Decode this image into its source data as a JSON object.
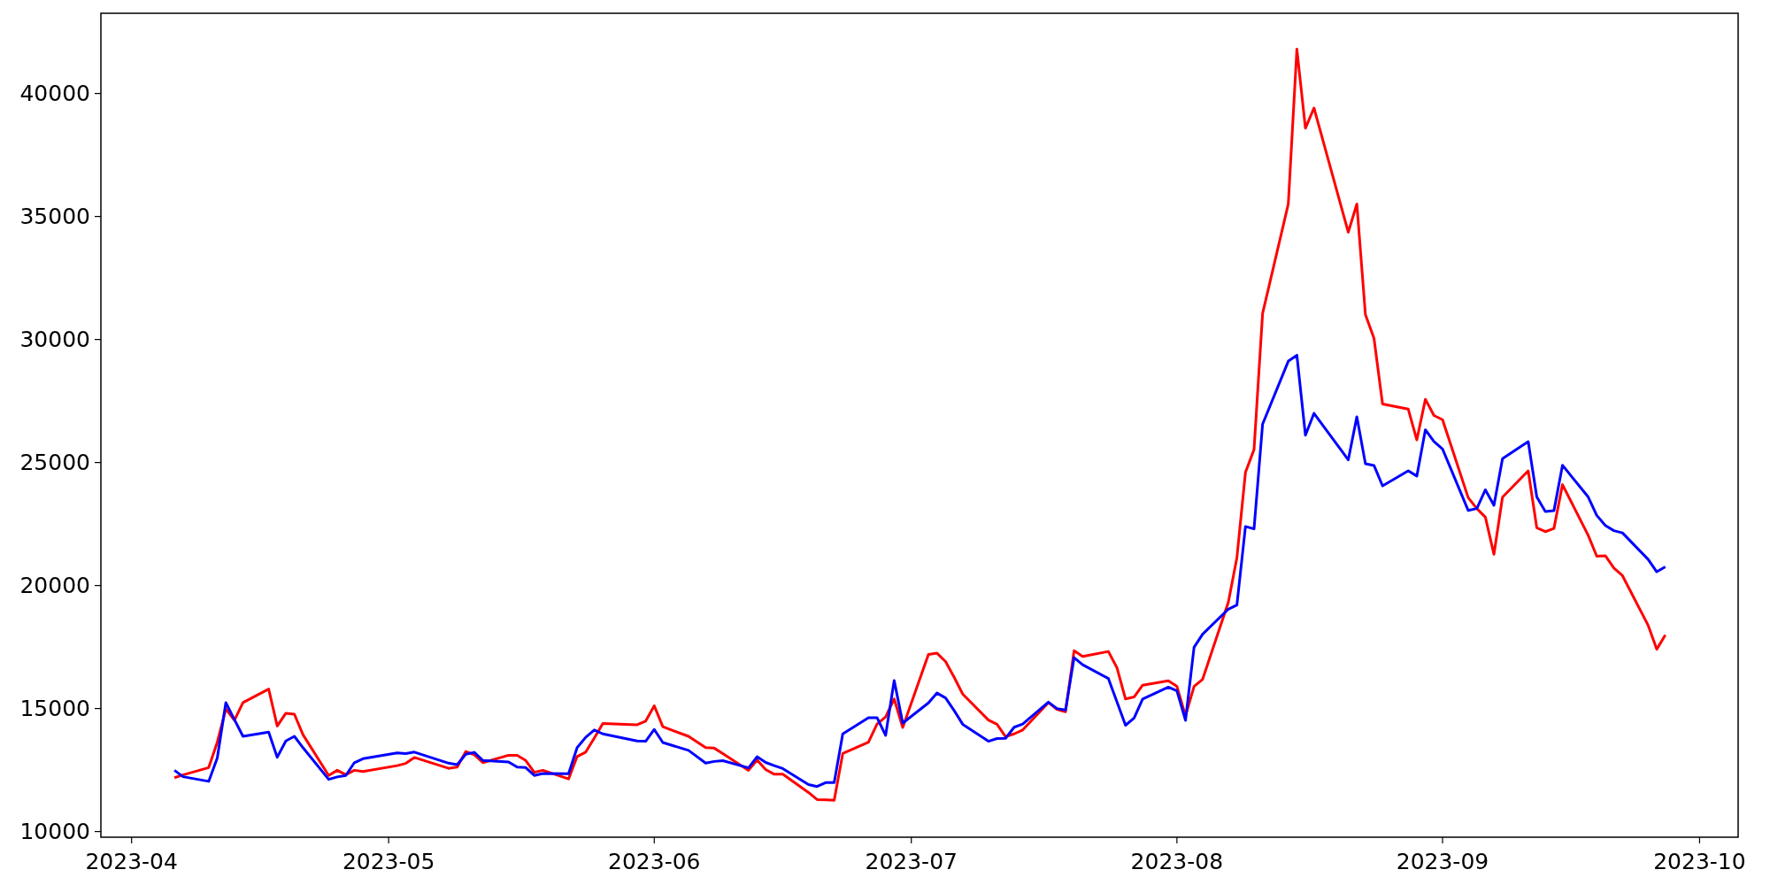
{
  "chart_data": {
    "type": "line",
    "x": [
      "2023-04-06",
      "2023-04-07",
      "2023-04-10",
      "2023-04-11",
      "2023-04-12",
      "2023-04-13",
      "2023-04-14",
      "2023-04-17",
      "2023-04-18",
      "2023-04-19",
      "2023-04-20",
      "2023-04-21",
      "2023-04-24",
      "2023-04-25",
      "2023-04-26",
      "2023-04-27",
      "2023-04-28",
      "2023-05-02",
      "2023-05-03",
      "2023-05-04",
      "2023-05-08",
      "2023-05-09",
      "2023-05-10",
      "2023-05-11",
      "2023-05-12",
      "2023-05-15",
      "2023-05-16",
      "2023-05-17",
      "2023-05-18",
      "2023-05-19",
      "2023-05-22",
      "2023-05-23",
      "2023-05-24",
      "2023-05-25",
      "2023-05-26",
      "2023-05-30",
      "2023-05-31",
      "2023-06-01",
      "2023-06-02",
      "2023-06-05",
      "2023-06-07",
      "2023-06-08",
      "2023-06-09",
      "2023-06-12",
      "2023-06-13",
      "2023-06-14",
      "2023-06-15",
      "2023-06-16",
      "2023-06-19",
      "2023-06-20",
      "2023-06-21",
      "2023-06-22",
      "2023-06-23",
      "2023-06-26",
      "2023-06-27",
      "2023-06-28",
      "2023-06-29",
      "2023-06-30",
      "2023-07-03",
      "2023-07-04",
      "2023-07-05",
      "2023-07-06",
      "2023-07-07",
      "2023-07-10",
      "2023-07-11",
      "2023-07-12",
      "2023-07-13",
      "2023-07-14",
      "2023-07-17",
      "2023-07-18",
      "2023-07-19",
      "2023-07-20",
      "2023-07-21",
      "2023-07-24",
      "2023-07-25",
      "2023-07-26",
      "2023-07-27",
      "2023-07-28",
      "2023-07-31",
      "2023-08-01",
      "2023-08-02",
      "2023-08-03",
      "2023-08-04",
      "2023-08-07",
      "2023-08-08",
      "2023-08-09",
      "2023-08-10",
      "2023-08-11",
      "2023-08-14",
      "2023-08-15",
      "2023-08-16",
      "2023-08-17",
      "2023-08-21",
      "2023-08-22",
      "2023-08-23",
      "2023-08-24",
      "2023-08-25",
      "2023-08-28",
      "2023-08-29",
      "2023-08-30",
      "2023-08-31",
      "2023-09-01",
      "2023-09-04",
      "2023-09-05",
      "2023-09-06",
      "2023-09-07",
      "2023-09-08",
      "2023-09-11",
      "2023-09-12",
      "2023-09-13",
      "2023-09-14",
      "2023-09-15",
      "2023-09-18",
      "2023-09-19",
      "2023-09-20",
      "2023-09-21",
      "2023-09-22",
      "2023-09-25",
      "2023-09-26",
      "2023-09-27"
    ],
    "series": [
      {
        "color": "#ff0000",
        "values": [
          12190,
          12300,
          12600,
          13630,
          14980,
          14520,
          15240,
          15790,
          14290,
          14810,
          14770,
          13940,
          12280,
          12490,
          12310,
          12490,
          12440,
          12680,
          12770,
          13010,
          12570,
          12620,
          13250,
          13120,
          12800,
          13100,
          13100,
          12890,
          12410,
          12490,
          12140,
          13050,
          13230,
          13800,
          14390,
          14340,
          14490,
          15110,
          14260,
          13870,
          13410,
          13390,
          13170,
          12490,
          12910,
          12520,
          12330,
          12330,
          11590,
          11300,
          11290,
          11270,
          13170,
          13630,
          14370,
          14660,
          15390,
          14230,
          17200,
          17250,
          16910,
          16270,
          15590,
          14530,
          14360,
          13860,
          13970,
          14130,
          15240,
          14970,
          14870,
          17350,
          17120,
          17320,
          16660,
          15390,
          15470,
          15950,
          16130,
          15900,
          14700,
          15900,
          16190,
          19320,
          21130,
          24600,
          25530,
          31060,
          35510,
          41800,
          38590,
          39410,
          34360,
          35510,
          31010,
          30050,
          27380,
          27170,
          25920,
          27570,
          26910,
          26740,
          23570,
          23130,
          22780,
          21270,
          23590,
          24660,
          22350,
          22190,
          22320,
          24100,
          22040,
          21190,
          21210,
          20710,
          20400,
          18380,
          17410,
          17990
        ]
      },
      {
        "color": "#0000ff",
        "values": [
          12490,
          12230,
          12040,
          12990,
          15240,
          14550,
          13870,
          14040,
          13020,
          13680,
          13870,
          13410,
          12120,
          12220,
          12280,
          12800,
          12960,
          13200,
          13170,
          13230,
          12780,
          12720,
          13140,
          13220,
          12890,
          12830,
          12620,
          12600,
          12280,
          12360,
          12350,
          13410,
          13830,
          14130,
          13970,
          13680,
          13670,
          14150,
          13620,
          13300,
          12780,
          12850,
          12880,
          12590,
          13040,
          12810,
          12680,
          12560,
          11910,
          11830,
          11990,
          11990,
          13970,
          14630,
          14630,
          13910,
          16140,
          14410,
          15230,
          15630,
          15430,
          14920,
          14360,
          13670,
          13780,
          13790,
          14240,
          14370,
          15260,
          15000,
          14940,
          17070,
          16780,
          16220,
          15270,
          14320,
          14610,
          15390,
          15870,
          15720,
          14520,
          17490,
          18020,
          19040,
          19210,
          22400,
          22300,
          26560,
          29120,
          29360,
          26110,
          27000,
          25110,
          26860,
          24950,
          24880,
          24050,
          24660,
          24450,
          26330,
          25850,
          25550,
          23050,
          23130,
          23890,
          23260,
          25160,
          25850,
          23600,
          23010,
          23040,
          24890,
          23600,
          22850,
          22440,
          22230,
          22140,
          21060,
          20560,
          20760
        ]
      }
    ],
    "xlim": [
      "2023-03-28T10:00",
      "2023-10-05T12:00"
    ],
    "xticks": [
      {
        "value": "2023-04-01",
        "label": "2023-04"
      },
      {
        "value": "2023-05-01",
        "label": "2023-05"
      },
      {
        "value": "2023-06-01",
        "label": "2023-06"
      },
      {
        "value": "2023-07-01",
        "label": "2023-07"
      },
      {
        "value": "2023-08-01",
        "label": "2023-08"
      },
      {
        "value": "2023-09-01",
        "label": "2023-09"
      },
      {
        "value": "2023-10-01",
        "label": "2023-10"
      }
    ],
    "ylim": [
      9770,
      43260
    ],
    "yticks": [
      10000,
      15000,
      20000,
      25000,
      30000,
      35000,
      40000
    ],
    "grid": false,
    "marker": "none",
    "line_style": "solid"
  }
}
